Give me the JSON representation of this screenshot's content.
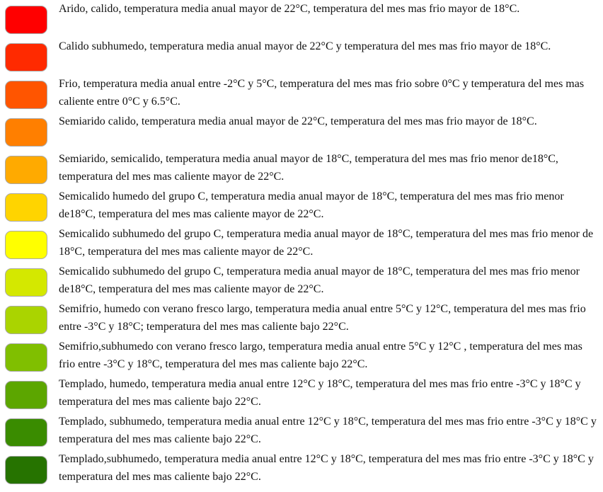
{
  "legend": {
    "items": [
      {
        "color": "#FF0000",
        "label": "Arido, calido, temperatura media anual mayor de 22°C, temperatura del mes mas frio mayor de 18°C."
      },
      {
        "color": "#FF2A00",
        "label": "Calido subhumedo, temperatura media anual mayor de 22°C y temperatura del mes mas frio mayor de 18°C."
      },
      {
        "color": "#FF5500",
        "label": "Frio, temperatura media anual entre -2°C y 5°C, temperatura del mes mas frio sobre 0°C y temperatura del mes mas caliente entre 0°C y 6.5°C."
      },
      {
        "color": "#FF7F00",
        "label": "Semiarido calido, temperatura media anual mayor de 22°C, temperatura del mes mas frio mayor de 18°C."
      },
      {
        "color": "#FFAA00",
        "label": "Semiarido, semicalido, temperatura media anual mayor de 18°C, temperatura del mes mas frio menor de18°C, temperatura del mes mas caliente mayor de 22°C."
      },
      {
        "color": "#FFD400",
        "label": "Semicalido humedo del grupo C, temperatura media anual mayor de 18°C, temperatura del mes mas frio menor de18°C, temperatura del mes mas caliente mayor de 22°C."
      },
      {
        "color": "#FFFF00",
        "label": "Semicalido subhumedo del grupo C, temperatura media anual mayor de 18°C, temperatura del mes mas frio menor de 18°C, temperatura del mes mas caliente mayor de 22°C."
      },
      {
        "color": "#D4E800",
        "label": "Semicalido subhumedo del grupo C, temperatura media anual mayor de 18°C, temperatura del mes mas frio menor de18°C, temperatura del mes mas caliente mayor de 22°C."
      },
      {
        "color": "#AAD400",
        "label": "Semifrio, humedo con verano fresco largo, temperatura media anual entre 5°C y 12°C, temperatura del mes mas frio entre -3°C y 18°C; temperatura del mes mas caliente bajo 22°C."
      },
      {
        "color": "#80BF00",
        "label": "Semifrio,subhumedo con verano fresco largo, temperatura media anual entre 5°C y 12°C , temperatura del mes mas frio entre -3°C y 18°C, temperatura del mes mas caliente bajo 22°C."
      },
      {
        "color": "#5CA600",
        "label": "Templado, humedo, temperatura media anual entre 12°C y  18°C, temperatura del mes mas frio entre -3°C y 18°C y temperatura del mes mas caliente bajo 22°C."
      },
      {
        "color": "#3A8C00",
        "label": "Templado, subhumedo, temperatura media anual entre 12°C y  18°C, temperatura del mes mas frio entre -3°C y 18°C y temperatura del mes mas caliente bajo 22°C."
      },
      {
        "color": "#267300",
        "label": "Templado,subhumedo, temperatura media anual entre 12°C y  18°C, temperatura del mes mas frio entre -3°C y 18°C y temperatura del mes mas caliente bajo 22°C."
      }
    ]
  }
}
